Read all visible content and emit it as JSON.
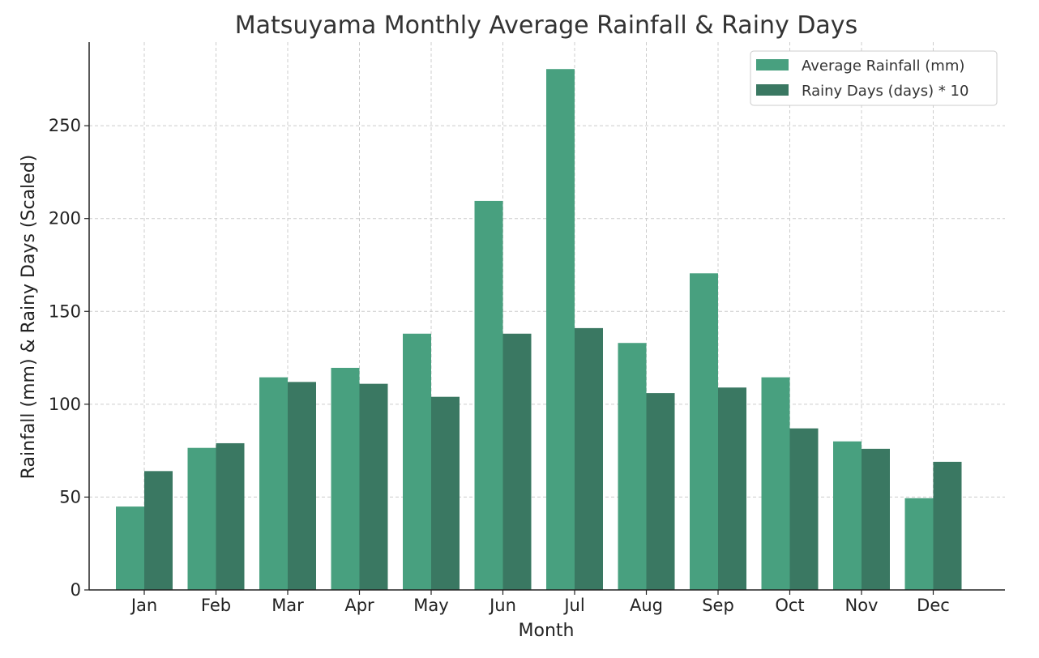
{
  "colors": {
    "rainfall": "#48a07f",
    "rainy_days": "#3a7862",
    "text": "#333333",
    "grid": "#cccccc"
  },
  "chart_data": {
    "type": "bar",
    "title": "Matsuyama Monthly Average Rainfall & Rainy Days",
    "xlabel": "Month",
    "ylabel": "Rainfall (mm) & Rainy Days (Scaled)",
    "ylim": [
      0,
      295
    ],
    "yticks": [
      0,
      50,
      100,
      150,
      200,
      250
    ],
    "grid": true,
    "legend_position": "top-right",
    "categories": [
      "Jan",
      "Feb",
      "Mar",
      "Apr",
      "May",
      "Jun",
      "Jul",
      "Aug",
      "Sep",
      "Oct",
      "Nov",
      "Dec"
    ],
    "series": [
      {
        "name": "Average Rainfall (mm)",
        "color": "#48a07f",
        "values": [
          44.9,
          76.5,
          114.5,
          119.6,
          138,
          209.5,
          280.5,
          133,
          170.5,
          114.5,
          80,
          49.4
        ]
      },
      {
        "name": "Rainy Days (days) * 10",
        "color": "#3a7862",
        "values": [
          64,
          79,
          112,
          111,
          104,
          138,
          141,
          106,
          109,
          87,
          76,
          69
        ]
      }
    ]
  }
}
